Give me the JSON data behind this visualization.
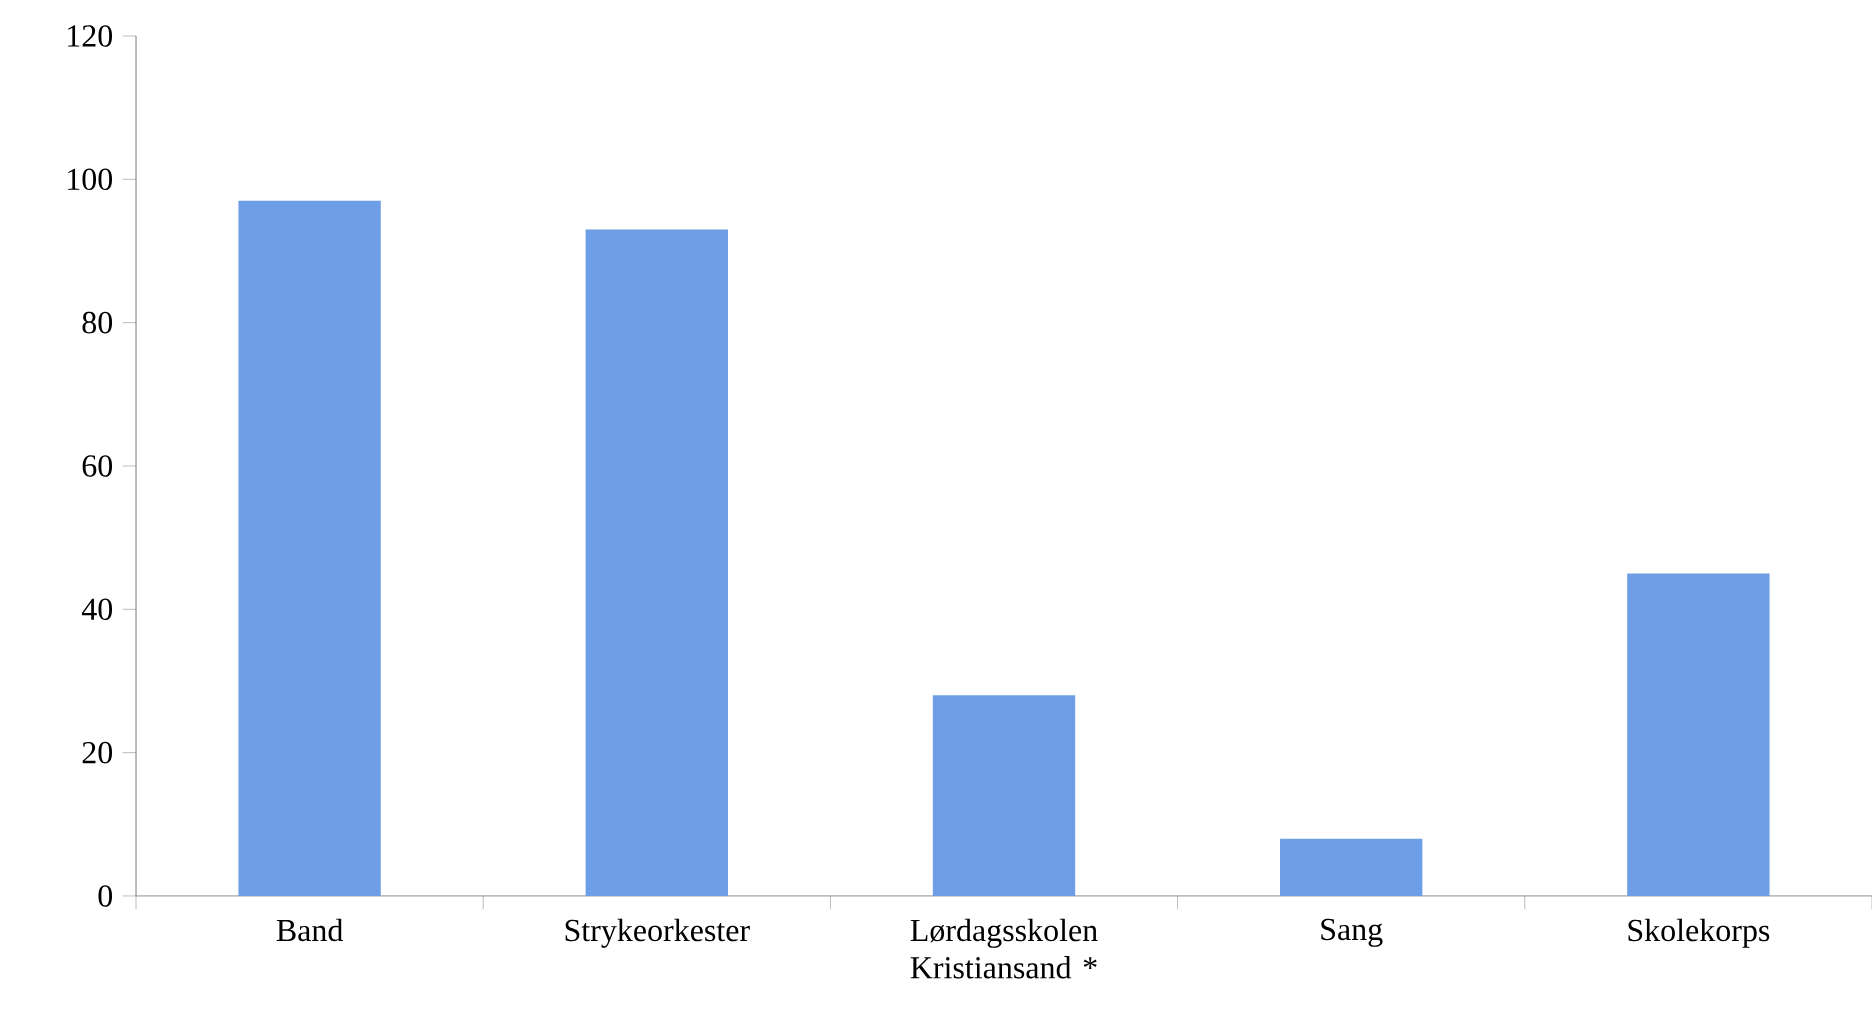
{
  "chart_data": {
    "type": "bar",
    "categories": [
      "Band",
      "Strykeorkester",
      "Lørdagsskolen Kristiansand *",
      "Sang",
      "Skolekorps"
    ],
    "values": [
      97,
      93,
      28,
      8,
      45
    ],
    "color": "#6e9ee6",
    "ylim": [
      0,
      120
    ],
    "yticks": [
      0,
      20,
      40,
      60,
      80,
      100,
      120
    ],
    "grid": false
  }
}
